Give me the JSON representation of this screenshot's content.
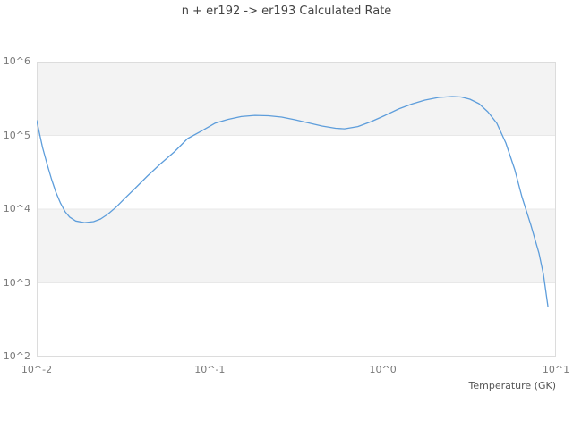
{
  "title": "n + er192 -> er193 Calculated Rate",
  "axes": {
    "x": {
      "label": "Temperature (GK)",
      "tick_labels": [
        "10^-2",
        "10^-1",
        "10^0",
        "10^1"
      ]
    },
    "y": {
      "tick_labels": [
        "10^2",
        "10^3",
        "10^4",
        "10^5",
        "10^6"
      ]
    }
  },
  "colors": {
    "line": "#5d9ddb",
    "band": "#f3f3f3",
    "grid": "#e8e8e8",
    "border": "#dcdcdc",
    "tick_text": "#787878",
    "title_text": "#434343",
    "axis_label_text": "#555555"
  },
  "chart_data": {
    "type": "line",
    "title": "n + er192 -> er193 Calculated Rate",
    "xlabel": "Temperature (GK)",
    "ylabel": "",
    "xscale": "log",
    "yscale": "log",
    "xlim": [
      0.01,
      10
    ],
    "ylim": [
      100,
      1000000
    ],
    "x_tick_labels": [
      "10^-2",
      "10^-1",
      "10^0",
      "10^1"
    ],
    "y_tick_labels": [
      "10^2",
      "10^3",
      "10^4",
      "10^5",
      "10^6"
    ],
    "grid": "horizontal-bands-alternating",
    "legend": "none",
    "series": [
      {
        "name": "Calculated Rate",
        "x": [
          0.01,
          0.0108,
          0.0115,
          0.0122,
          0.0129,
          0.0137,
          0.0146,
          0.0155,
          0.0168,
          0.0189,
          0.0213,
          0.0234,
          0.0258,
          0.0287,
          0.0323,
          0.0373,
          0.0436,
          0.0521,
          0.0623,
          0.0745,
          0.0891,
          0.107,
          0.127,
          0.152,
          0.182,
          0.218,
          0.26,
          0.311,
          0.372,
          0.445,
          0.533,
          0.6,
          0.717,
          0.857,
          1.03,
          1.23,
          1.47,
          1.75,
          2.1,
          2.51,
          2.83,
          3.18,
          3.59,
          4.04,
          4.55,
          5.13,
          5.78,
          6.35,
          7.16,
          7.98,
          8.46,
          8.98
        ],
        "y": [
          159000,
          68600,
          40400,
          25100,
          17000,
          12200,
          9200,
          7800,
          6900,
          6570,
          6760,
          7360,
          8570,
          10600,
          14000,
          19500,
          28100,
          41500,
          59700,
          90800,
          114000,
          146000,
          165000,
          180000,
          187000,
          185000,
          177000,
          163000,
          148000,
          134000,
          125000,
          123000,
          132000,
          154000,
          187000,
          228000,
          266000,
          301000,
          327000,
          337000,
          332000,
          310000,
          269000,
          209000,
          146000,
          78900,
          34100,
          14800,
          6100,
          2500,
          1300,
          480
        ]
      }
    ]
  }
}
